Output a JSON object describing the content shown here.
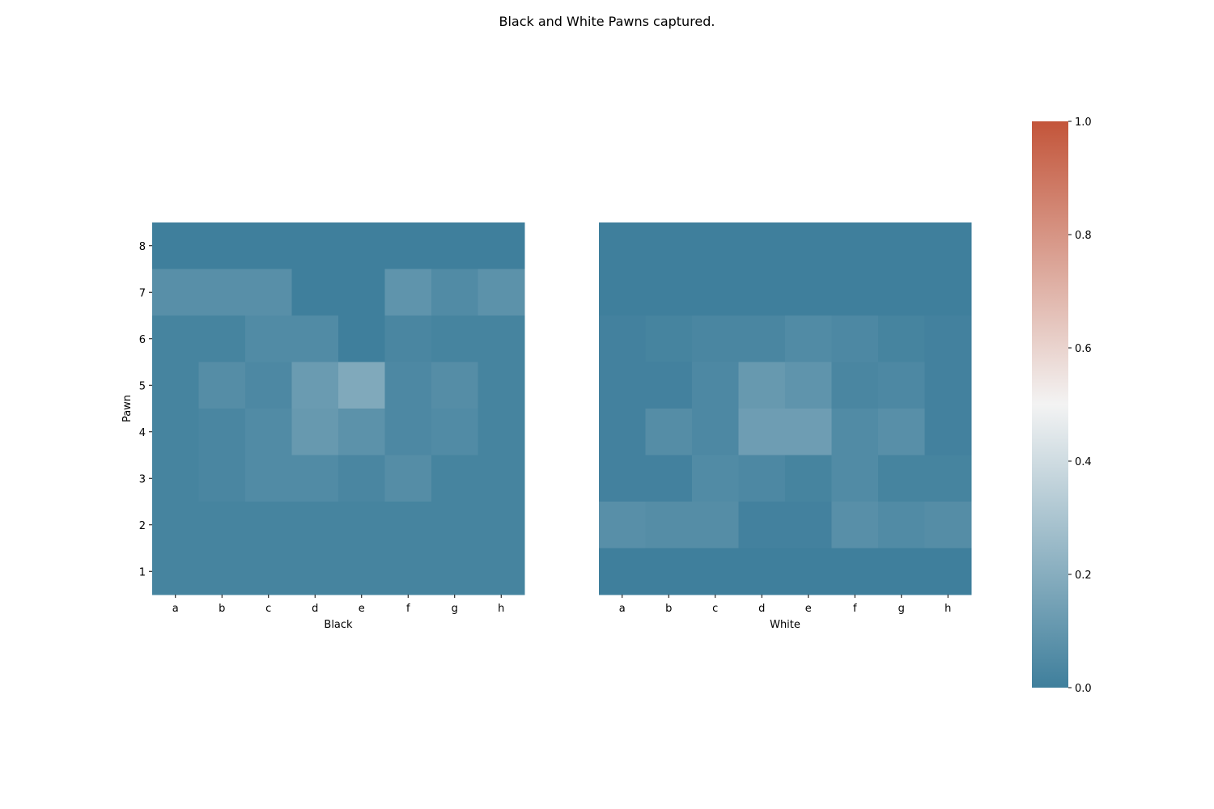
{
  "chart_data": {
    "type": "heatmap",
    "title": "Black and White Pawns captured.",
    "ylabel": "Pawn",
    "colorbar": {
      "range": [
        0,
        1
      ],
      "ticks": [
        "0.0",
        "0.2",
        "0.4",
        "0.6",
        "0.8",
        "1.0"
      ],
      "colors": [
        "#3f7f9c",
        "#f3f3f3",
        "#c3553a"
      ]
    },
    "panels": [
      {
        "xlabel": "Black",
        "columns": [
          "a",
          "b",
          "c",
          "d",
          "e",
          "f",
          "g",
          "h"
        ],
        "rows": [
          "8",
          "7",
          "6",
          "5",
          "4",
          "3",
          "2",
          "1"
        ],
        "values": [
          [
            0.0,
            0.0,
            0.0,
            0.0,
            0.0,
            0.0,
            0.0,
            0.0
          ],
          [
            0.07,
            0.07,
            0.07,
            0.0,
            0.0,
            0.09,
            0.05,
            0.08
          ],
          [
            0.02,
            0.02,
            0.05,
            0.05,
            0.0,
            0.03,
            0.02,
            0.02
          ],
          [
            0.02,
            0.06,
            0.04,
            0.12,
            0.18,
            0.04,
            0.06,
            0.02
          ],
          [
            0.02,
            0.03,
            0.05,
            0.11,
            0.08,
            0.04,
            0.05,
            0.02
          ],
          [
            0.02,
            0.03,
            0.05,
            0.05,
            0.03,
            0.06,
            0.02,
            0.02
          ],
          [
            0.02,
            0.02,
            0.02,
            0.02,
            0.02,
            0.02,
            0.02,
            0.02
          ],
          [
            0.02,
            0.02,
            0.02,
            0.02,
            0.02,
            0.02,
            0.02,
            0.02
          ]
        ]
      },
      {
        "xlabel": "White",
        "columns": [
          "a",
          "b",
          "c",
          "d",
          "e",
          "f",
          "g",
          "h"
        ],
        "rows": [
          "8",
          "7",
          "6",
          "5",
          "4",
          "3",
          "2",
          "1"
        ],
        "values": [
          [
            0.0,
            0.0,
            0.0,
            0.0,
            0.0,
            0.0,
            0.0,
            0.0
          ],
          [
            0.0,
            0.0,
            0.0,
            0.0,
            0.0,
            0.0,
            0.0,
            0.0
          ],
          [
            0.01,
            0.02,
            0.03,
            0.03,
            0.05,
            0.04,
            0.02,
            0.01
          ],
          [
            0.01,
            0.01,
            0.04,
            0.11,
            0.09,
            0.03,
            0.04,
            0.01
          ],
          [
            0.01,
            0.06,
            0.04,
            0.13,
            0.13,
            0.05,
            0.07,
            0.01
          ],
          [
            0.01,
            0.01,
            0.05,
            0.04,
            0.02,
            0.05,
            0.02,
            0.02
          ],
          [
            0.07,
            0.06,
            0.06,
            0.01,
            0.01,
            0.07,
            0.05,
            0.06
          ],
          [
            0.0,
            0.0,
            0.0,
            0.0,
            0.0,
            0.0,
            0.0,
            0.0
          ]
        ]
      }
    ]
  }
}
